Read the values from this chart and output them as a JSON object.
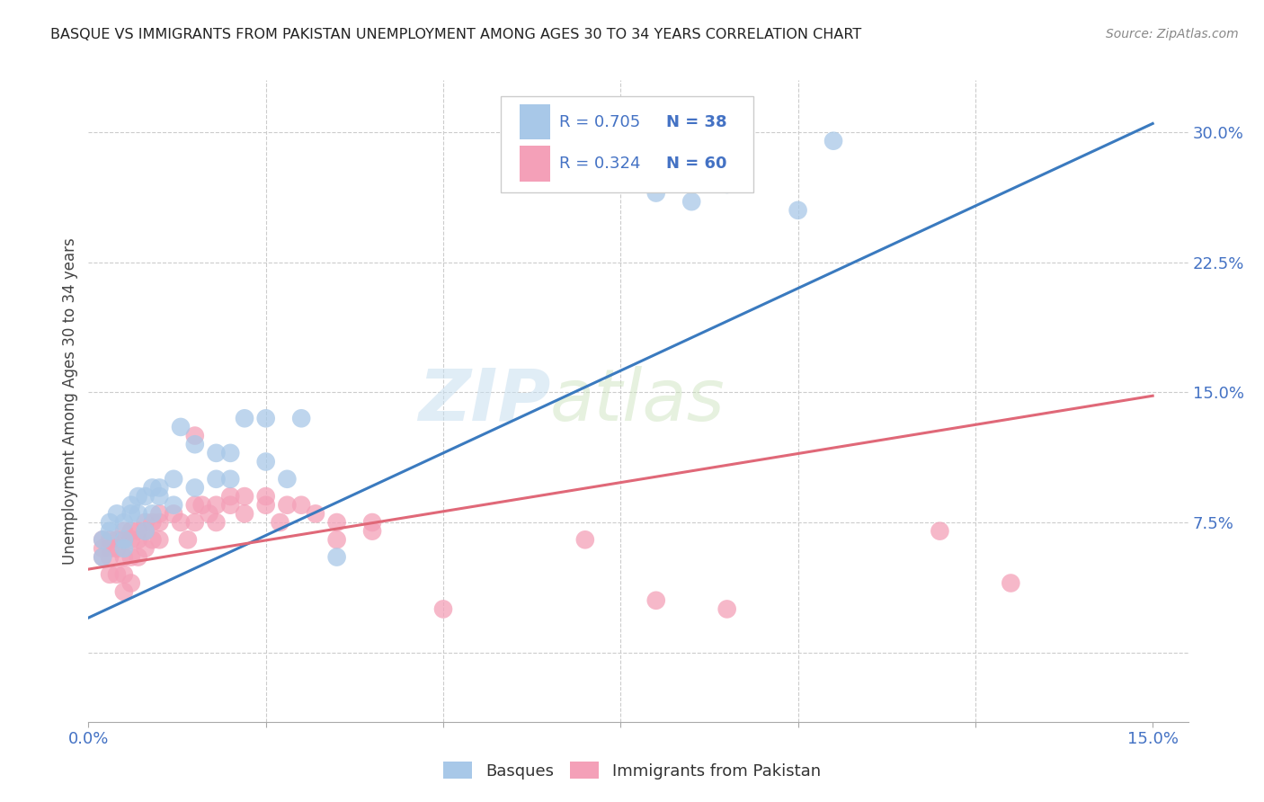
{
  "title": "BASQUE VS IMMIGRANTS FROM PAKISTAN UNEMPLOYMENT AMONG AGES 30 TO 34 YEARS CORRELATION CHART",
  "source": "Source: ZipAtlas.com",
  "ylabel": "Unemployment Among Ages 30 to 34 years",
  "watermark_zip": "ZIP",
  "watermark_atlas": "atlas",
  "legend_r1": "R = 0.705",
  "legend_n1": "N = 38",
  "legend_r2": "R = 0.324",
  "legend_n2": "N = 60",
  "color_blue": "#a8c8e8",
  "color_pink": "#f4a0b8",
  "color_blue_line": "#3a7abf",
  "color_pink_line": "#e06878",
  "color_blue_text": "#4472c4",
  "basque_x": [
    0.002,
    0.002,
    0.003,
    0.003,
    0.004,
    0.005,
    0.005,
    0.005,
    0.006,
    0.006,
    0.007,
    0.007,
    0.008,
    0.008,
    0.009,
    0.009,
    0.01,
    0.01,
    0.012,
    0.012,
    0.013,
    0.015,
    0.015,
    0.018,
    0.018,
    0.02,
    0.02,
    0.022,
    0.025,
    0.025,
    0.028,
    0.03,
    0.035,
    0.08,
    0.085,
    0.09,
    0.1,
    0.105
  ],
  "basque_y": [
    0.055,
    0.065,
    0.07,
    0.075,
    0.08,
    0.06,
    0.065,
    0.075,
    0.08,
    0.085,
    0.08,
    0.09,
    0.07,
    0.09,
    0.08,
    0.095,
    0.09,
    0.095,
    0.085,
    0.1,
    0.13,
    0.095,
    0.12,
    0.1,
    0.115,
    0.1,
    0.115,
    0.135,
    0.11,
    0.135,
    0.1,
    0.135,
    0.055,
    0.265,
    0.26,
    0.27,
    0.255,
    0.295
  ],
  "pakistan_x": [
    0.002,
    0.002,
    0.002,
    0.003,
    0.003,
    0.003,
    0.003,
    0.004,
    0.004,
    0.004,
    0.005,
    0.005,
    0.005,
    0.005,
    0.005,
    0.006,
    0.006,
    0.006,
    0.006,
    0.007,
    0.007,
    0.007,
    0.008,
    0.008,
    0.008,
    0.009,
    0.009,
    0.01,
    0.01,
    0.01,
    0.012,
    0.013,
    0.014,
    0.015,
    0.015,
    0.015,
    0.016,
    0.017,
    0.018,
    0.018,
    0.02,
    0.02,
    0.022,
    0.022,
    0.025,
    0.025,
    0.027,
    0.028,
    0.03,
    0.032,
    0.035,
    0.035,
    0.04,
    0.04,
    0.05,
    0.07,
    0.08,
    0.09,
    0.12,
    0.13
  ],
  "pakistan_y": [
    0.065,
    0.06,
    0.055,
    0.065,
    0.06,
    0.055,
    0.045,
    0.065,
    0.06,
    0.045,
    0.07,
    0.065,
    0.055,
    0.045,
    0.035,
    0.07,
    0.065,
    0.055,
    0.04,
    0.07,
    0.065,
    0.055,
    0.075,
    0.07,
    0.06,
    0.075,
    0.065,
    0.08,
    0.075,
    0.065,
    0.08,
    0.075,
    0.065,
    0.085,
    0.125,
    0.075,
    0.085,
    0.08,
    0.085,
    0.075,
    0.09,
    0.085,
    0.09,
    0.08,
    0.09,
    0.085,
    0.075,
    0.085,
    0.085,
    0.08,
    0.075,
    0.065,
    0.075,
    0.07,
    0.025,
    0.065,
    0.03,
    0.025,
    0.07,
    0.04
  ],
  "basque_line_x": [
    0.0,
    0.15
  ],
  "basque_line_y": [
    0.02,
    0.305
  ],
  "pakistan_line_x": [
    0.0,
    0.15
  ],
  "pakistan_line_y": [
    0.048,
    0.148
  ],
  "xlim": [
    0.0,
    0.155
  ],
  "ylim": [
    -0.04,
    0.33
  ],
  "xtick_positions": [
    0.0,
    0.025,
    0.05,
    0.075,
    0.1,
    0.125,
    0.15
  ],
  "xtick_labels": [
    "0.0%",
    "",
    "",
    "",
    "",
    "",
    "15.0%"
  ],
  "ytick_positions": [
    0.0,
    0.075,
    0.15,
    0.225,
    0.3
  ],
  "ytick_labels": [
    "",
    "7.5%",
    "15.0%",
    "22.5%",
    "30.0%"
  ]
}
